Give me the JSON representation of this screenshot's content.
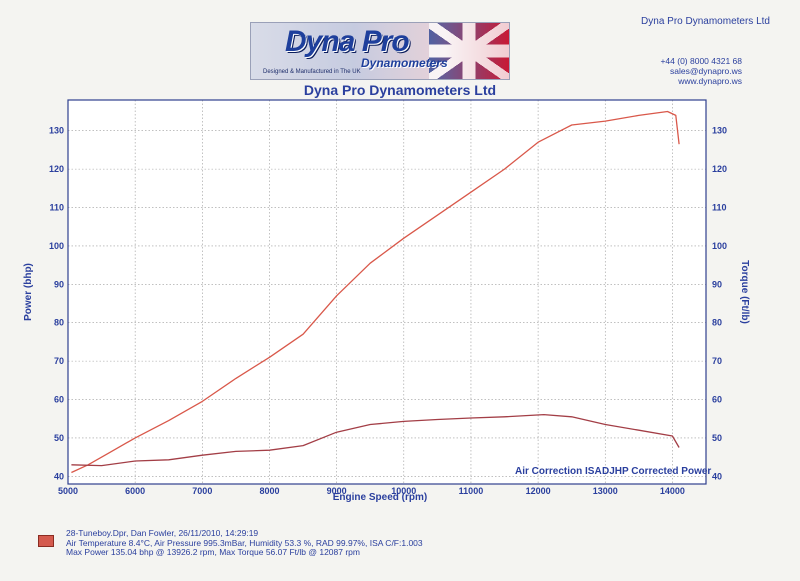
{
  "header": {
    "company_top": "Dyna Pro Dynamometers Ltd",
    "phone": "+44 (0) 8000 4321 68",
    "email": "sales@dynapro.ws",
    "website": "www.dynapro.ws",
    "title": "Dyna Pro Dynamometers Ltd",
    "logo": {
      "brand": "Dyna Pro",
      "sub": "Dynamometers",
      "tagline": "Designed & Manufactured in The UK"
    }
  },
  "chart_data": {
    "type": "line",
    "xlabel": "Engine Speed (rpm)",
    "ylabel": "Power (bhp)",
    "y2label": "Torque (Ft/lb)",
    "xlim": [
      5000,
      14500
    ],
    "ylim": [
      38,
      138
    ],
    "xticks": [
      5000,
      6000,
      7000,
      8000,
      9000,
      10000,
      11000,
      12000,
      13000,
      14000
    ],
    "yticks": [
      40,
      50,
      60,
      70,
      80,
      90,
      100,
      110,
      120,
      130
    ],
    "grid": true,
    "annotations": [
      "Air Correction ISA",
      "DJHP Corrected Power"
    ],
    "series": [
      {
        "name": "Power",
        "color": "#d9584a",
        "x": [
          5050,
          5300,
          5600,
          6000,
          6500,
          7000,
          7500,
          8000,
          8500,
          9000,
          9500,
          10000,
          10500,
          11000,
          11500,
          12000,
          12500,
          13000,
          13500,
          13926,
          14050,
          14100
        ],
        "y": [
          41,
          43,
          46,
          50,
          54.5,
          59.5,
          65.5,
          71,
          77,
          87,
          95.5,
          102,
          108,
          114,
          120,
          127,
          131.5,
          132.5,
          134,
          135,
          134,
          126.5
        ]
      },
      {
        "name": "Torque",
        "color": "#a33e46",
        "x": [
          5050,
          5500,
          6000,
          6500,
          7000,
          7500,
          8000,
          8500,
          9000,
          9500,
          10000,
          10500,
          11000,
          11500,
          12087,
          12500,
          13000,
          13500,
          14000,
          14100
        ],
        "y": [
          43,
          42.8,
          44,
          44.3,
          45.5,
          46.5,
          46.8,
          48,
          51.5,
          53.5,
          54.3,
          54.8,
          55.2,
          55.5,
          56.07,
          55.5,
          53.5,
          52,
          50.5,
          47.5
        ]
      }
    ]
  },
  "footer": {
    "run_line": "28-Tuneboy.Dpr,  Dan Fowler,  26/11/2010,  14:29:19",
    "conditions": "Air Temperature 8.4°C,  Air Pressure 995.3mBar,  Humidity 53.3 %,  RAD 99.97%,   ISA  C/F:1.003",
    "max_values": "Max Power 135.04 bhp @ 13926.2 rpm,  Max Torque 56.07 Ft/lb @ 12087 rpm"
  }
}
